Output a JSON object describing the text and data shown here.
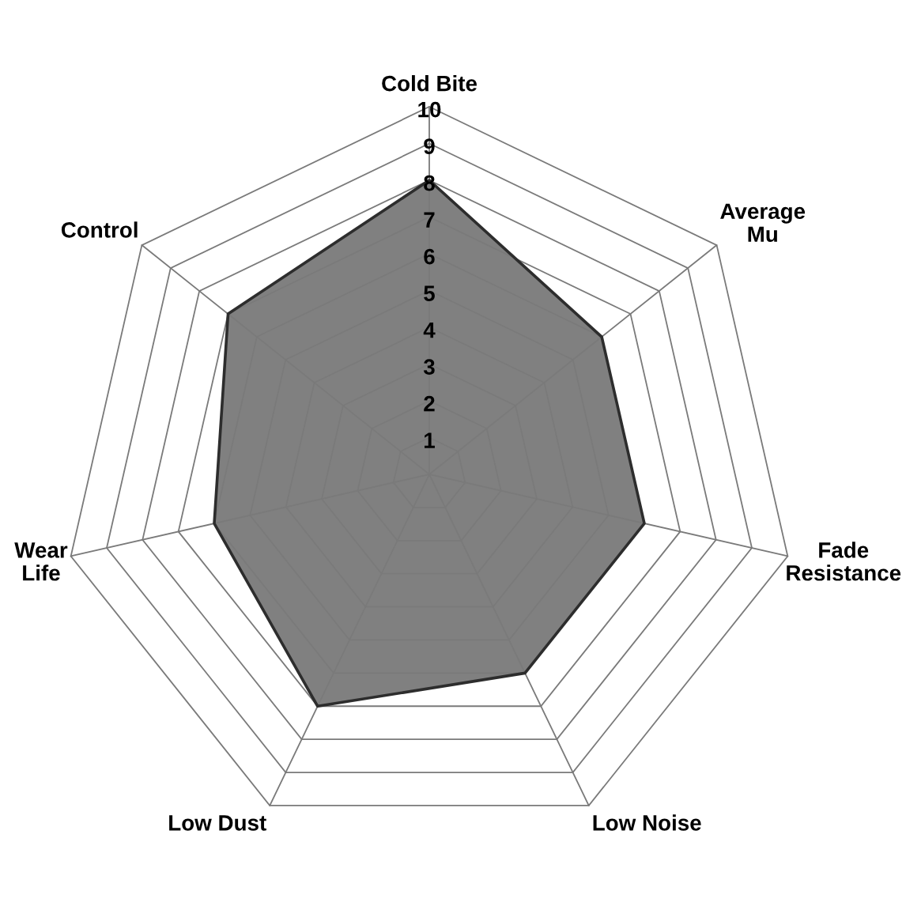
{
  "chart_data": {
    "type": "radar",
    "categories": [
      "Cold Bite",
      "Average\nMu",
      "Fade\nResistance",
      "Low Noise",
      "Low Dust",
      "Wear\nLife",
      "Control"
    ],
    "series": [
      {
        "color": "#808080",
        "values": [
          8,
          6,
          6,
          6,
          7,
          6,
          7
        ]
      }
    ],
    "ylim": [
      0,
      10
    ],
    "yticks": [
      1,
      2,
      3,
      4,
      5,
      6,
      7,
      8,
      9,
      10
    ],
    "grid": true
  }
}
